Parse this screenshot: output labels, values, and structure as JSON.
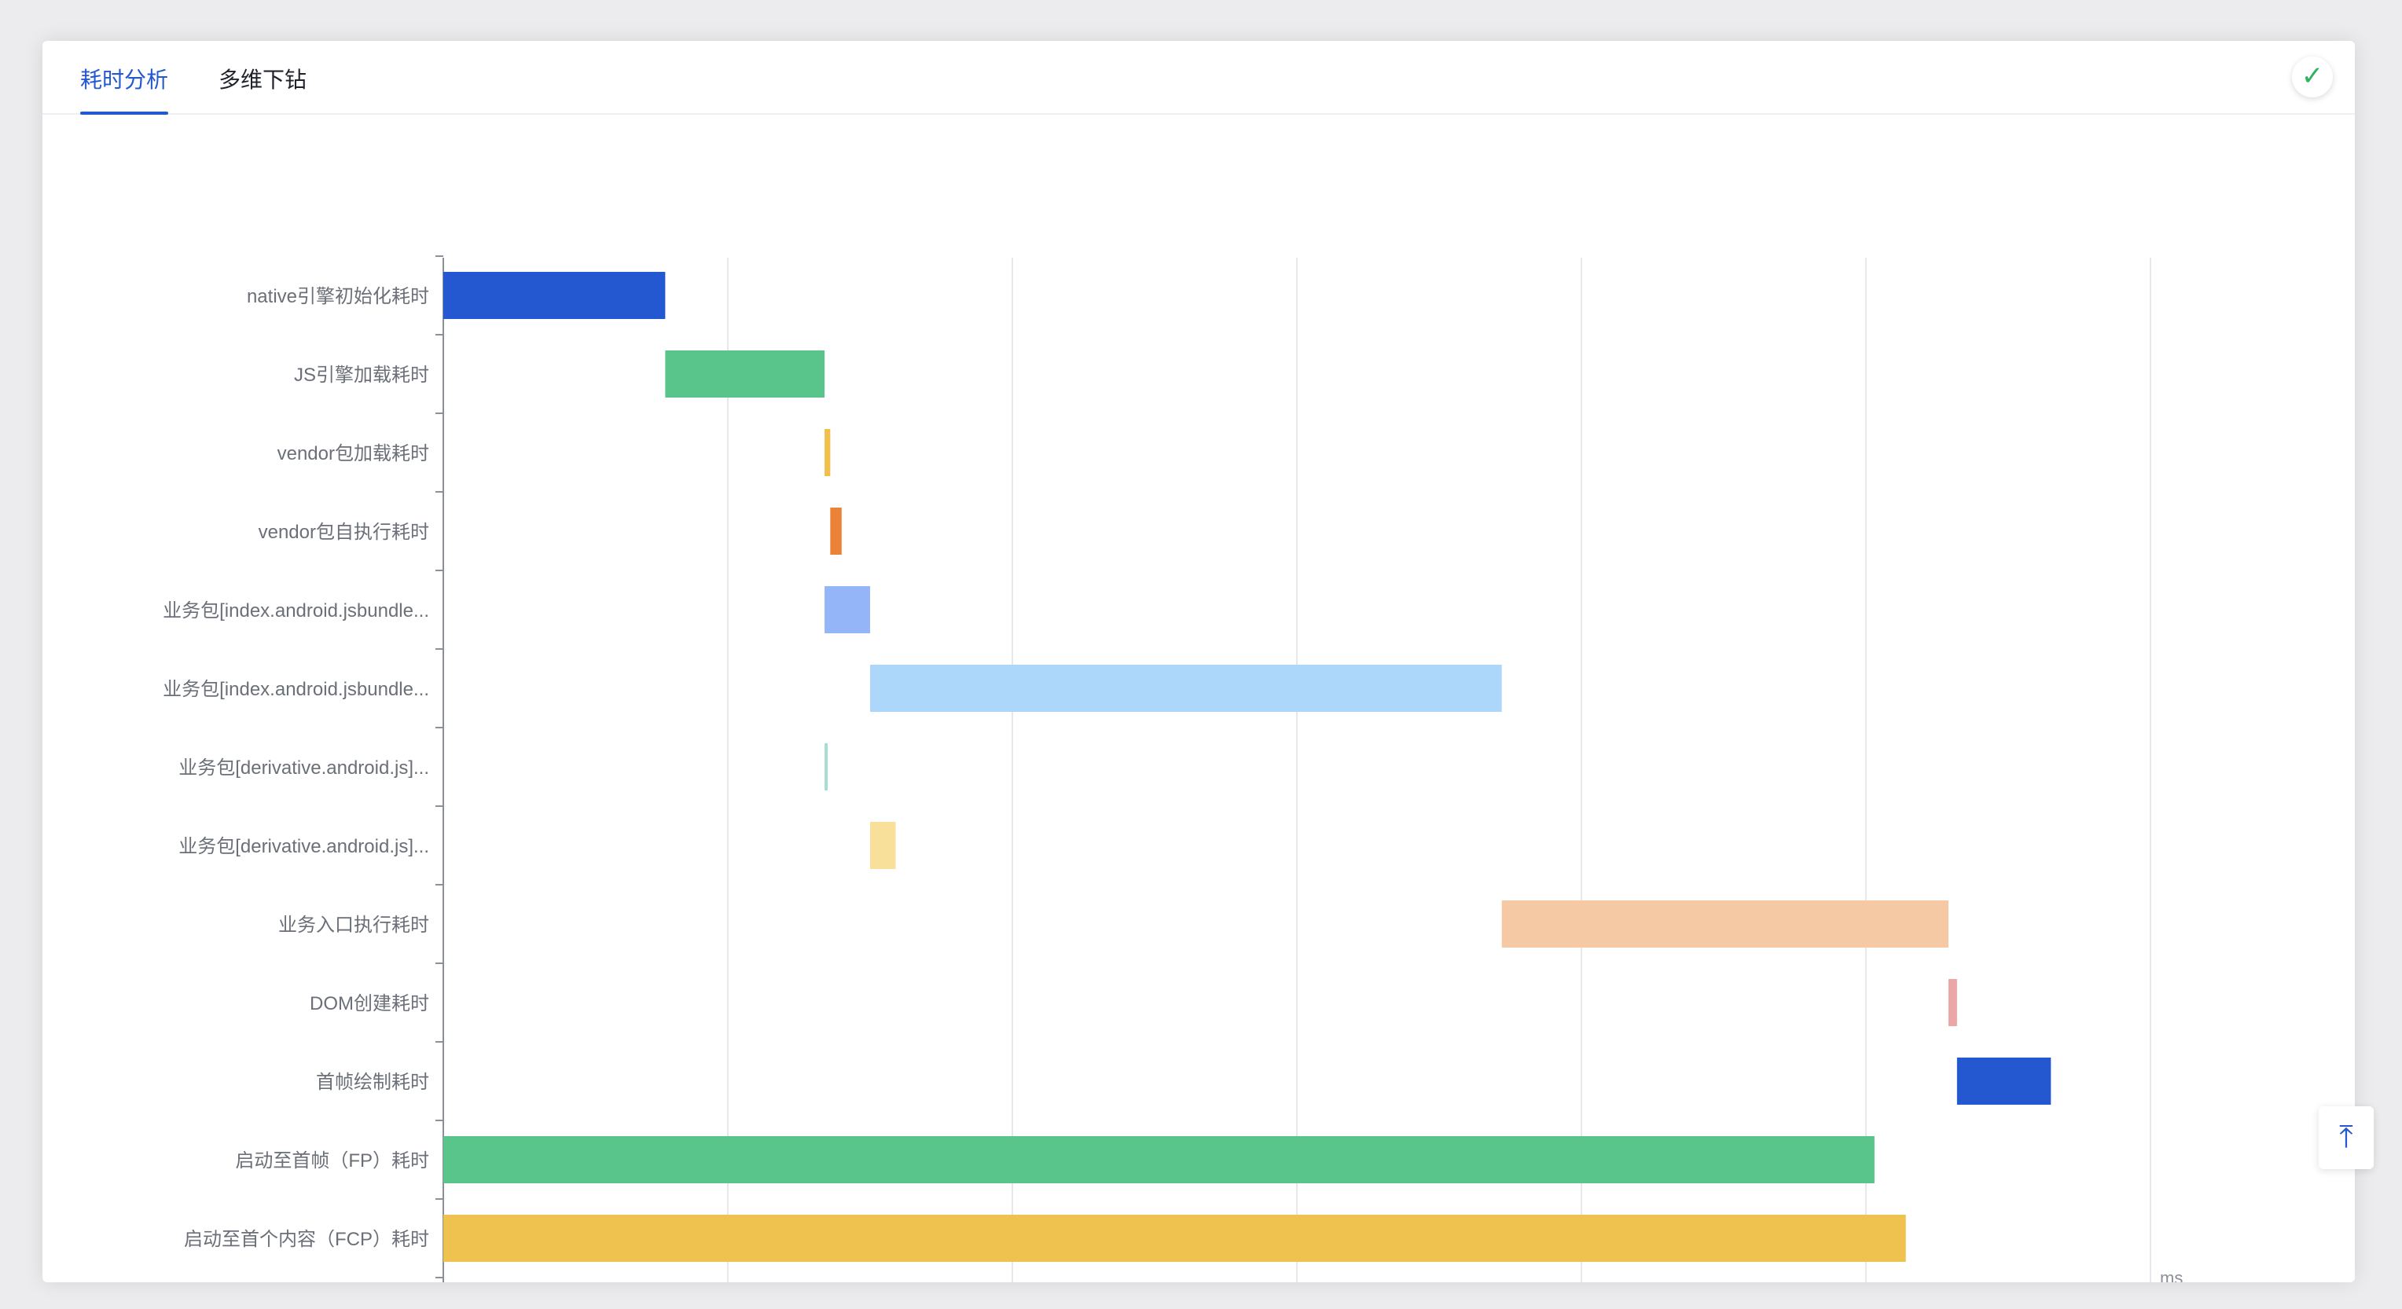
{
  "tabs": [
    {
      "label": "耗时分析",
      "active": true
    },
    {
      "label": "多维下钻",
      "active": false
    }
  ],
  "accent_color": "#2358d1",
  "badge_icon": "check-v-icon",
  "back_top_icon": "arrow-up-to-top-icon",
  "chart_data": {
    "type": "bar",
    "orientation": "horizontal",
    "subtype": "waterfall",
    "x_unit": "ms",
    "xlim": [
      0,
      6
    ],
    "grid": true,
    "categories": [
      "native引擎初始化耗时",
      "JS引擎加载耗时",
      "vendor包加载耗时",
      "vendor包自执行耗时",
      "业务包[index.android.jsbundle...",
      "业务包[index.android.jsbundle...",
      "业务包[derivative.android.js]...",
      "业务包[derivative.android.js]...",
      "业务入口执行耗时",
      "DOM创建耗时",
      "首帧绘制耗时",
      "启动至首帧（FP）耗时",
      "启动至首个内容（FCP）耗时"
    ],
    "start": [
      0,
      0.78,
      1.34,
      1.36,
      1.34,
      1.5,
      1.34,
      1.5,
      3.72,
      5.29,
      5.32,
      0,
      0
    ],
    "end": [
      0.78,
      1.34,
      1.36,
      1.4,
      1.5,
      3.72,
      1.35,
      1.59,
      5.29,
      5.32,
      5.65,
      5.03,
      5.14
    ],
    "colors": [
      "#2358d1",
      "#5ac58a",
      "#f0c04a",
      "#ec8237",
      "#94b5f7",
      "#acd6fa",
      "#a7dcd0",
      "#f8e09b",
      "#f5c9a4",
      "#eba6a6",
      "#2358d1",
      "#5ac58a",
      "#efc14e"
    ]
  }
}
